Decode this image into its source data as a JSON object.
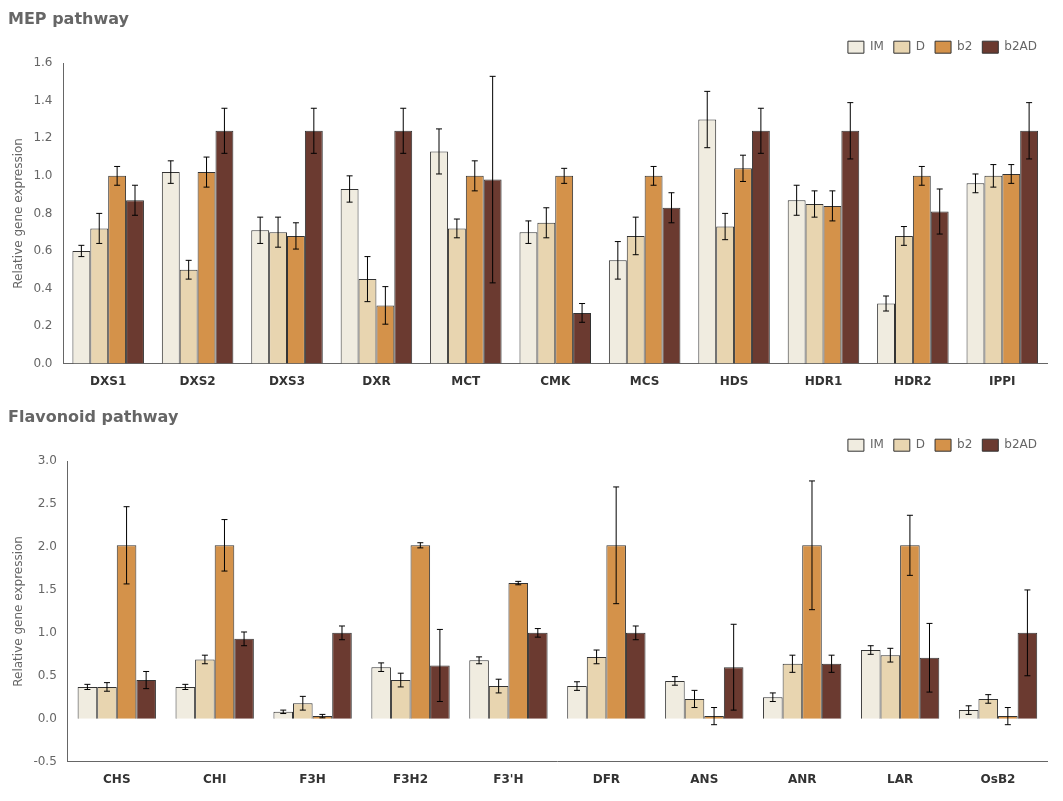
{
  "chart_data": [
    {
      "type": "bar",
      "title": "MEP pathway",
      "ylabel": "Relative gene expression",
      "categories": [
        "DXS1",
        "DXS2",
        "DXS3",
        "DXR",
        "MCT",
        "CMK",
        "MCS",
        "HDS",
        "HDR1",
        "HDR2",
        "IPPI"
      ],
      "series": [
        {
          "name": "IM",
          "color": "#f0ece0",
          "values": [
            0.6,
            1.02,
            0.71,
            0.93,
            1.13,
            0.7,
            0.55,
            1.3,
            0.87,
            0.32,
            0.96
          ],
          "errors": [
            0.03,
            0.06,
            0.07,
            0.07,
            0.12,
            0.06,
            0.1,
            0.15,
            0.08,
            0.04,
            0.05
          ]
        },
        {
          "name": "D",
          "color": "#e8d5b0",
          "values": [
            0.72,
            0.5,
            0.7,
            0.45,
            0.72,
            0.75,
            0.68,
            0.73,
            0.85,
            0.68,
            1.0
          ],
          "errors": [
            0.08,
            0.05,
            0.08,
            0.12,
            0.05,
            0.08,
            0.1,
            0.07,
            0.07,
            0.05,
            0.06
          ]
        },
        {
          "name": "b2",
          "color": "#d4924a",
          "values": [
            1.0,
            1.02,
            0.68,
            0.31,
            1.0,
            1.0,
            1.0,
            1.04,
            0.84,
            1.0,
            1.01
          ],
          "errors": [
            0.05,
            0.08,
            0.07,
            0.1,
            0.08,
            0.04,
            0.05,
            0.07,
            0.08,
            0.05,
            0.05
          ]
        },
        {
          "name": "b2AD",
          "color": "#6b3a30",
          "values": [
            0.87,
            1.24,
            1.24,
            1.24,
            0.98,
            0.27,
            0.83,
            1.24,
            1.24,
            0.81,
            1.24
          ],
          "errors": [
            0.08,
            0.12,
            0.12,
            0.12,
            0.55,
            0.05,
            0.08,
            0.12,
            0.15,
            0.12,
            0.15
          ]
        }
      ],
      "ylim": [
        0,
        1.6
      ],
      "yticks": [
        {
          "value": 0,
          "label": "0.0"
        },
        0.2,
        0.4,
        0.6,
        0.8,
        {
          "value": 1,
          "label": "1.0"
        },
        1.2,
        1.4,
        1.6
      ],
      "grid": false,
      "legend": "upper right"
    },
    {
      "type": "bar",
      "title": "Flavonoid pathway",
      "ylabel": "Relative gene expression",
      "categories": [
        "CHS",
        "CHI",
        "F3H",
        "F3H2",
        "F3'H",
        "DFR",
        "ANS",
        "ANR",
        "LAR",
        "OsB2"
      ],
      "series": [
        {
          "name": "IM",
          "color": "#f0ece0",
          "values": [
            0.37,
            0.37,
            0.08,
            0.6,
            0.68,
            0.38,
            0.44,
            0.25,
            0.8,
            0.1
          ],
          "errors": [
            0.03,
            0.03,
            0.02,
            0.05,
            0.04,
            0.05,
            0.05,
            0.05,
            0.05,
            0.05
          ]
        },
        {
          "name": "D",
          "color": "#e8d5b0",
          "values": [
            0.37,
            0.69,
            0.18,
            0.45,
            0.38,
            0.72,
            0.23,
            0.64,
            0.74,
            0.23
          ],
          "errors": [
            0.05,
            0.05,
            0.08,
            0.08,
            0.08,
            0.08,
            0.1,
            0.1,
            0.08,
            0.05
          ]
        },
        {
          "name": "b2",
          "color": "#d4924a",
          "values": [
            2.02,
            2.02,
            0.03,
            2.02,
            1.58,
            2.02,
            0.03,
            2.02,
            2.02,
            0.03
          ],
          "errors": [
            0.45,
            0.3,
            0.02,
            0.03,
            0.02,
            0.68,
            0.1,
            0.75,
            0.35,
            0.1
          ]
        },
        {
          "name": "b2AD",
          "color": "#6b3a30",
          "values": [
            0.45,
            0.93,
            1.0,
            0.62,
            1.0,
            1.0,
            0.6,
            0.64,
            0.71,
            1.0
          ],
          "errors": [
            0.1,
            0.08,
            0.08,
            0.42,
            0.05,
            0.08,
            0.5,
            0.1,
            0.4,
            0.5
          ]
        }
      ],
      "ylim": [
        -0.5,
        3.0
      ],
      "yticks": [
        -0.5,
        {
          "value": 0,
          "label": "0.0"
        },
        0.5,
        {
          "value": 1,
          "label": "1.0"
        },
        1.5,
        {
          "value": 2,
          "label": "2.0"
        },
        2.5,
        {
          "value": 3,
          "label": "3.0"
        }
      ],
      "grid": false,
      "legend": "upper right"
    }
  ]
}
